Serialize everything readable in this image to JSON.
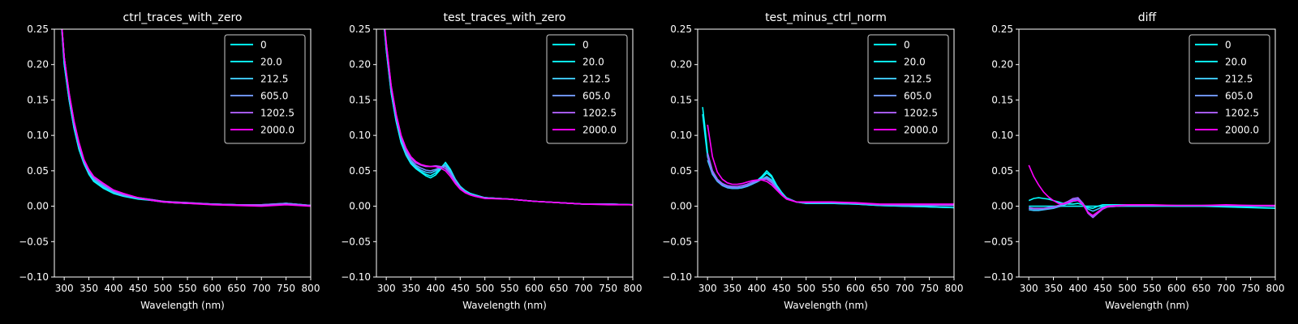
{
  "figure": {
    "background": "#000000",
    "foreground": "#ffffff"
  },
  "legend": {
    "location": "upper right",
    "entries": [
      {
        "label": "0",
        "color": "#00ffff"
      },
      {
        "label": "20.0",
        "color": "#0cf3ff"
      },
      {
        "label": "212.5",
        "color": "#3dc2ff"
      },
      {
        "label": "605.0",
        "color": "#6d92ff"
      },
      {
        "label": "1202.5",
        "color": "#a65aff"
      },
      {
        "label": "2000.0",
        "color": "#ff00ff"
      }
    ]
  },
  "chart_data": [
    {
      "type": "line",
      "title": "ctrl_traces_with_zero",
      "xlabel": "Wavelength (nm)",
      "ylabel": "",
      "xlim": [
        280,
        800
      ],
      "ylim": [
        -0.1,
        0.25
      ],
      "xticks": [
        "300",
        "350",
        "400",
        "450",
        "500",
        "550",
        "600",
        "650",
        "700",
        "750",
        "800"
      ],
      "yticks": [
        "0.25",
        "0.20",
        "0.15",
        "0.10",
        "0.05",
        "0.00",
        "−0.05",
        "−0.10"
      ],
      "grid": false,
      "legend_position": "top-right",
      "x": [
        290,
        300,
        310,
        320,
        330,
        340,
        350,
        360,
        380,
        400,
        420,
        450,
        480,
        500,
        520,
        550,
        600,
        650,
        700,
        750,
        800
      ],
      "series": [
        {
          "name": "0",
          "values": [
            0.3,
            0.2,
            0.15,
            0.11,
            0.08,
            0.06,
            0.045,
            0.035,
            0.025,
            0.018,
            0.014,
            0.01,
            0.008,
            0.006,
            0.005,
            0.004,
            0.003,
            0.002,
            0.001,
            0.003,
            0.001
          ]
        },
        {
          "name": "20.0",
          "values": [
            0.3,
            0.2,
            0.15,
            0.11,
            0.08,
            0.06,
            0.046,
            0.036,
            0.026,
            0.019,
            0.015,
            0.011,
            0.008,
            0.006,
            0.005,
            0.004,
            0.003,
            0.002,
            0.001,
            0.004,
            0.001
          ]
        },
        {
          "name": "212.5",
          "values": [
            0.3,
            0.21,
            0.155,
            0.115,
            0.085,
            0.062,
            0.048,
            0.038,
            0.028,
            0.02,
            0.015,
            0.011,
            0.008,
            0.007,
            0.005,
            0.004,
            0.003,
            0.002,
            0.002,
            0.004,
            0.001
          ]
        },
        {
          "name": "605.0",
          "values": [
            0.3,
            0.21,
            0.155,
            0.115,
            0.085,
            0.063,
            0.049,
            0.039,
            0.029,
            0.021,
            0.016,
            0.012,
            0.009,
            0.007,
            0.006,
            0.005,
            0.003,
            0.002,
            0.002,
            0.004,
            0.001
          ]
        },
        {
          "name": "1202.5",
          "values": [
            0.3,
            0.21,
            0.16,
            0.12,
            0.088,
            0.065,
            0.051,
            0.041,
            0.031,
            0.022,
            0.017,
            0.012,
            0.009,
            0.007,
            0.006,
            0.005,
            0.003,
            0.002,
            0.002,
            0.003,
            0.001
          ]
        },
        {
          "name": "2000.0",
          "values": [
            0.3,
            0.21,
            0.16,
            0.12,
            0.09,
            0.066,
            0.052,
            0.042,
            0.032,
            0.023,
            0.018,
            0.012,
            0.008,
            0.006,
            0.005,
            0.004,
            0.002,
            0.001,
            0.0,
            0.002,
            0.0
          ]
        }
      ]
    },
    {
      "type": "line",
      "title": "test_traces_with_zero",
      "xlabel": "Wavelength (nm)",
      "ylabel": "",
      "xlim": [
        280,
        800
      ],
      "ylim": [
        -0.1,
        0.25
      ],
      "xticks": [
        "300",
        "350",
        "400",
        "450",
        "500",
        "550",
        "600",
        "650",
        "700",
        "750",
        "800"
      ],
      "yticks": [
        "0.25",
        "0.20",
        "0.15",
        "0.10",
        "0.05",
        "0.00",
        "−0.05",
        "−0.10"
      ],
      "grid": false,
      "legend_position": "top-right",
      "x": [
        290,
        300,
        310,
        320,
        330,
        340,
        350,
        360,
        370,
        380,
        390,
        400,
        410,
        420,
        430,
        440,
        450,
        460,
        470,
        480,
        500,
        550,
        600,
        650,
        700,
        750,
        800
      ],
      "series": [
        {
          "name": "0",
          "values": [
            0.3,
            0.22,
            0.16,
            0.12,
            0.09,
            0.072,
            0.06,
            0.053,
            0.048,
            0.043,
            0.04,
            0.044,
            0.052,
            0.062,
            0.052,
            0.038,
            0.028,
            0.022,
            0.018,
            0.016,
            0.012,
            0.01,
            0.007,
            0.005,
            0.003,
            0.003,
            0.002
          ]
        },
        {
          "name": "20.0",
          "values": [
            0.3,
            0.22,
            0.16,
            0.12,
            0.09,
            0.073,
            0.061,
            0.054,
            0.049,
            0.045,
            0.043,
            0.047,
            0.054,
            0.061,
            0.051,
            0.038,
            0.028,
            0.022,
            0.018,
            0.016,
            0.012,
            0.01,
            0.007,
            0.005,
            0.003,
            0.003,
            0.002
          ]
        },
        {
          "name": "212.5",
          "values": [
            0.3,
            0.225,
            0.165,
            0.125,
            0.095,
            0.075,
            0.063,
            0.056,
            0.051,
            0.048,
            0.047,
            0.05,
            0.055,
            0.058,
            0.049,
            0.037,
            0.027,
            0.021,
            0.017,
            0.015,
            0.012,
            0.01,
            0.007,
            0.005,
            0.003,
            0.003,
            0.002
          ]
        },
        {
          "name": "605.0",
          "values": [
            0.3,
            0.225,
            0.165,
            0.125,
            0.096,
            0.077,
            0.065,
            0.058,
            0.054,
            0.051,
            0.05,
            0.052,
            0.055,
            0.056,
            0.047,
            0.036,
            0.026,
            0.02,
            0.017,
            0.015,
            0.012,
            0.01,
            0.007,
            0.005,
            0.003,
            0.003,
            0.002
          ]
        },
        {
          "name": "1202.5",
          "values": [
            0.3,
            0.23,
            0.17,
            0.13,
            0.1,
            0.08,
            0.068,
            0.061,
            0.058,
            0.056,
            0.056,
            0.057,
            0.056,
            0.053,
            0.045,
            0.034,
            0.025,
            0.02,
            0.016,
            0.014,
            0.011,
            0.01,
            0.007,
            0.005,
            0.003,
            0.003,
            0.002
          ]
        },
        {
          "name": "2000.0",
          "values": [
            0.3,
            0.23,
            0.17,
            0.13,
            0.1,
            0.082,
            0.07,
            0.063,
            0.059,
            0.057,
            0.056,
            0.056,
            0.054,
            0.05,
            0.042,
            0.032,
            0.024,
            0.019,
            0.016,
            0.014,
            0.011,
            0.01,
            0.007,
            0.005,
            0.003,
            0.002,
            0.002
          ]
        }
      ]
    },
    {
      "type": "line",
      "title": "test_minus_ctrl_norm",
      "xlabel": "Wavelength (nm)",
      "ylabel": "",
      "xlim": [
        280,
        800
      ],
      "ylim": [
        -0.1,
        0.25
      ],
      "xticks": [
        "300",
        "350",
        "400",
        "450",
        "500",
        "550",
        "600",
        "650",
        "700",
        "750",
        "800"
      ],
      "yticks": [
        "0.25",
        "0.20",
        "0.15",
        "0.10",
        "0.05",
        "0.00",
        "−0.05",
        "−0.10"
      ],
      "grid": false,
      "legend_position": "top-right",
      "x": [
        290,
        295,
        300,
        310,
        320,
        330,
        340,
        350,
        360,
        370,
        380,
        390,
        400,
        410,
        420,
        430,
        440,
        450,
        460,
        480,
        500,
        550,
        600,
        650,
        700,
        750,
        800
      ],
      "series": [
        {
          "name": "0",
          "values": [
            0.14,
            0.11,
            0.075,
            0.05,
            0.038,
            0.032,
            0.029,
            0.027,
            0.026,
            0.027,
            0.029,
            0.032,
            0.036,
            0.042,
            0.05,
            0.043,
            0.03,
            0.02,
            0.012,
            0.006,
            0.004,
            0.004,
            0.003,
            0.001,
            0.0,
            -0.001,
            -0.002
          ]
        },
        {
          "name": "20.0",
          "values": [
            0.13,
            0.1,
            0.07,
            0.046,
            0.035,
            0.03,
            0.027,
            0.026,
            0.025,
            0.026,
            0.028,
            0.031,
            0.035,
            0.04,
            0.047,
            0.041,
            0.029,
            0.019,
            0.012,
            0.006,
            0.004,
            0.004,
            0.003,
            0.001,
            0.0,
            -0.001,
            -0.002
          ]
        },
        {
          "name": "212.5",
          "values": [
            null,
            null,
            0.065,
            0.045,
            0.035,
            0.029,
            0.026,
            0.025,
            0.025,
            0.026,
            0.028,
            0.031,
            0.034,
            0.038,
            0.042,
            0.037,
            0.027,
            0.018,
            0.011,
            0.006,
            0.005,
            0.005,
            0.004,
            0.002,
            0.001,
            0.001,
            0.001
          ]
        },
        {
          "name": "605.0",
          "values": [
            null,
            null,
            0.07,
            0.047,
            0.036,
            0.03,
            0.027,
            0.026,
            0.026,
            0.027,
            0.029,
            0.032,
            0.035,
            0.038,
            0.04,
            0.035,
            0.026,
            0.017,
            0.011,
            0.006,
            0.005,
            0.005,
            0.004,
            0.002,
            0.001,
            0.001,
            0.001
          ]
        },
        {
          "name": "1202.5",
          "values": [
            null,
            null,
            0.075,
            0.05,
            0.038,
            0.032,
            0.029,
            0.028,
            0.028,
            0.029,
            0.031,
            0.034,
            0.036,
            0.038,
            0.038,
            0.033,
            0.025,
            0.017,
            0.011,
            0.006,
            0.005,
            0.006,
            0.004,
            0.002,
            0.002,
            0.002,
            0.002
          ]
        },
        {
          "name": "2000.0",
          "values": [
            null,
            null,
            0.115,
            0.07,
            0.048,
            0.038,
            0.033,
            0.031,
            0.031,
            0.032,
            0.034,
            0.036,
            0.037,
            0.037,
            0.035,
            0.03,
            0.023,
            0.016,
            0.01,
            0.006,
            0.006,
            0.006,
            0.005,
            0.003,
            0.003,
            0.003,
            0.003
          ]
        }
      ]
    },
    {
      "type": "line",
      "title": "diff",
      "xlabel": "Wavelength (nm)",
      "ylabel": "",
      "xlim": [
        280,
        800
      ],
      "ylim": [
        -0.1,
        0.25
      ],
      "xticks": [
        "300",
        "350",
        "400",
        "450",
        "500",
        "550",
        "600",
        "650",
        "700",
        "750",
        "800"
      ],
      "yticks": [
        "0.25",
        "0.20",
        "0.15",
        "0.10",
        "0.05",
        "0.00",
        "−0.05",
        "−0.10"
      ],
      "grid": false,
      "legend_position": "top-right",
      "x": [
        300,
        310,
        320,
        330,
        340,
        350,
        360,
        370,
        380,
        390,
        400,
        410,
        420,
        430,
        440,
        450,
        460,
        480,
        500,
        550,
        600,
        650,
        700,
        750,
        800
      ],
      "series": [
        {
          "name": "0",
          "values": [
            0.008,
            0.011,
            0.012,
            0.011,
            0.01,
            0.008,
            0.006,
            0.004,
            0.003,
            0.003,
            0.004,
            0.002,
            -0.002,
            -0.003,
            0.0,
            0.002,
            0.002,
            0.002,
            0.002,
            0.001,
            0.0,
            0.0,
            -0.001,
            -0.002,
            -0.003
          ]
        },
        {
          "name": "20.0",
          "values": [
            0.0,
            0.0,
            0.0,
            0.0,
            0.0,
            0.0,
            0.0,
            0.0,
            0.0,
            0.0,
            0.0,
            0.0,
            0.0,
            0.0,
            0.0,
            0.0,
            0.0,
            0.0,
            0.0,
            0.0,
            0.0,
            0.0,
            0.0,
            0.0,
            0.0
          ]
        },
        {
          "name": "212.5",
          "values": [
            -0.005,
            -0.006,
            -0.006,
            -0.005,
            -0.004,
            -0.003,
            -0.001,
            0.001,
            0.004,
            0.007,
            0.008,
            0.003,
            -0.004,
            -0.007,
            -0.004,
            -0.001,
            0.0,
            0.0,
            0.001,
            0.001,
            0.001,
            0.001,
            0.001,
            0.0,
            0.0
          ]
        },
        {
          "name": "605.0",
          "values": [
            -0.003,
            -0.004,
            -0.004,
            -0.004,
            -0.003,
            -0.002,
            0.0,
            0.003,
            0.006,
            0.009,
            0.01,
            0.004,
            -0.008,
            -0.014,
            -0.008,
            -0.003,
            -0.001,
            0.0,
            0.001,
            0.001,
            0.001,
            0.001,
            0.001,
            0.001,
            0.0
          ]
        },
        {
          "name": "1202.5",
          "values": [
            -0.002,
            -0.003,
            -0.003,
            -0.003,
            -0.002,
            -0.001,
            0.001,
            0.004,
            0.007,
            0.011,
            0.012,
            0.004,
            -0.01,
            -0.016,
            -0.01,
            -0.004,
            -0.001,
            0.0,
            0.001,
            0.001,
            0.001,
            0.001,
            0.001,
            0.001,
            0.001
          ]
        },
        {
          "name": "2000.0",
          "values": [
            0.058,
            0.042,
            0.03,
            0.02,
            0.013,
            0.008,
            0.004,
            0.003,
            0.005,
            0.008,
            0.008,
            0.002,
            -0.009,
            -0.013,
            -0.008,
            -0.003,
            0.0,
            0.001,
            0.002,
            0.002,
            0.001,
            0.001,
            0.002,
            0.001,
            0.001
          ]
        }
      ]
    }
  ]
}
